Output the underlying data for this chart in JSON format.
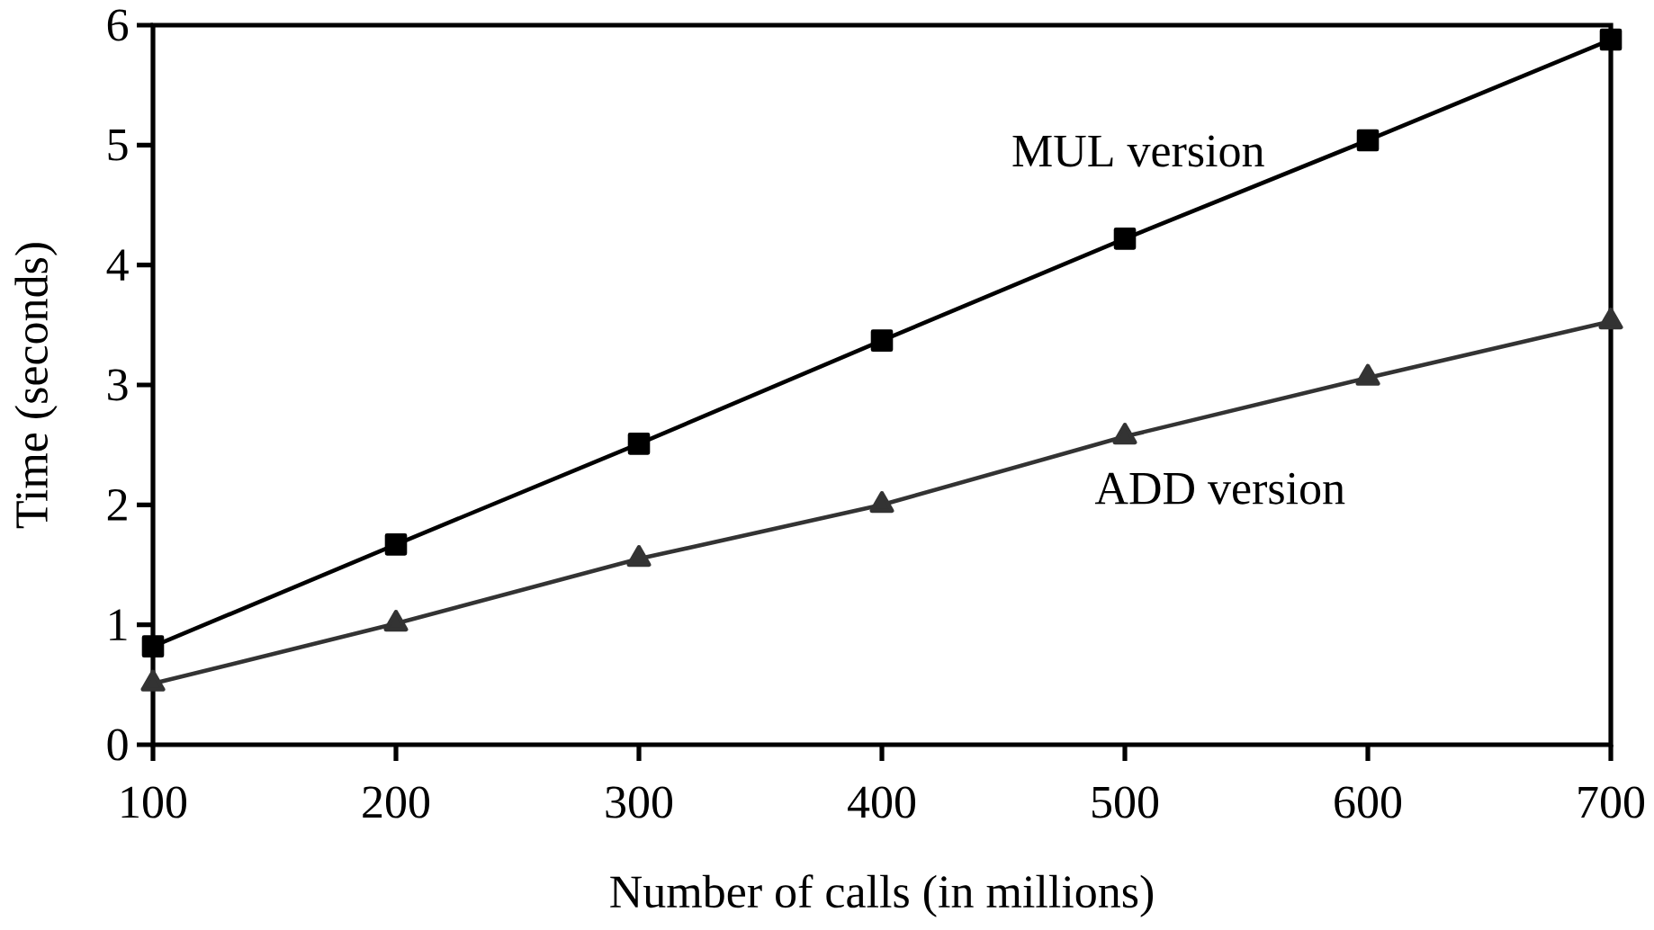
{
  "chart_data": {
    "type": "line",
    "xlabel": "Number of calls (in millions)",
    "ylabel": "Time (seconds)",
    "x": [
      100,
      200,
      300,
      400,
      500,
      600,
      700
    ],
    "xlim": [
      100,
      700
    ],
    "xticks": [
      100,
      200,
      300,
      400,
      500,
      600,
      700
    ],
    "ylim": [
      0,
      6
    ],
    "yticks": [
      0,
      1,
      2,
      3,
      4,
      5,
      6
    ],
    "series": [
      {
        "name": "MUL version",
        "color": "#000000",
        "marker": "square",
        "values": [
          0.82,
          1.67,
          2.51,
          3.37,
          4.22,
          5.04,
          5.88
        ]
      },
      {
        "name": "ADD version",
        "color": "#333333",
        "marker": "triangle",
        "values": [
          0.51,
          1.01,
          1.55,
          2.0,
          2.57,
          3.06,
          3.53
        ]
      }
    ]
  }
}
